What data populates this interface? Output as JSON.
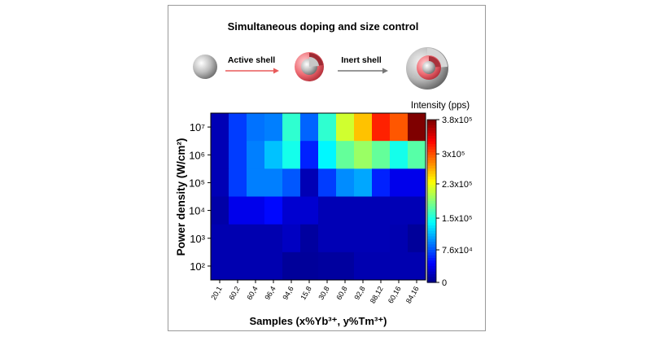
{
  "header": {
    "title": "Simultaneous doping and size control",
    "step1_label": "Active shell",
    "step2_label": "Inert shell",
    "arrow_color": "#e85a5a",
    "arrow2_color": "#777777"
  },
  "chart_data": {
    "type": "heatmap",
    "title": "",
    "xlabel": "Samples (x%Yb³⁺, y%Tm³⁺)",
    "ylabel": "Power density (W/cm²)",
    "legend_title": "Intensity (pps)",
    "x_categories": [
      "20,1",
      "60,2",
      "60,4",
      "96,4",
      "94,6",
      "15,8",
      "30,8",
      "60,8",
      "92,8",
      "88,12",
      "60,16",
      "84,16"
    ],
    "y_categories": [
      "10⁷",
      "10⁶",
      "10⁵",
      "10⁴",
      "10³",
      "10²"
    ],
    "colorbar_ticks": [
      "3.8x10⁵",
      "3x10⁵",
      "2.3x10⁵",
      "1.5x10⁵",
      "7.6x10⁴",
      "0"
    ],
    "colorbar_tick_values": [
      380000,
      300000,
      230000,
      150000,
      76000,
      0
    ],
    "zlim": [
      0,
      380000
    ],
    "colorscale": [
      "#00007f",
      "#0000ff",
      "#007fff",
      "#00ffff",
      "#7fff7f",
      "#ffff00",
      "#ff7f00",
      "#ff0000",
      "#7f0000"
    ],
    "values": [
      [
        20000,
        70000,
        90000,
        95000,
        160000,
        85000,
        160000,
        220000,
        260000,
        320000,
        300000,
        380000
      ],
      [
        20000,
        70000,
        95000,
        120000,
        150000,
        60000,
        140000,
        180000,
        200000,
        180000,
        150000,
        175000
      ],
      [
        20000,
        70000,
        95000,
        95000,
        80000,
        20000,
        70000,
        100000,
        110000,
        60000,
        40000,
        40000
      ],
      [
        15000,
        40000,
        40000,
        50000,
        30000,
        30000,
        20000,
        20000,
        20000,
        20000,
        20000,
        20000
      ],
      [
        18000,
        18000,
        18000,
        18000,
        25000,
        12000,
        20000,
        20000,
        20000,
        20000,
        18000,
        10000
      ],
      [
        18000,
        18000,
        18000,
        18000,
        10000,
        10000,
        12000,
        12000,
        18000,
        18000,
        18000,
        18000
      ]
    ]
  }
}
